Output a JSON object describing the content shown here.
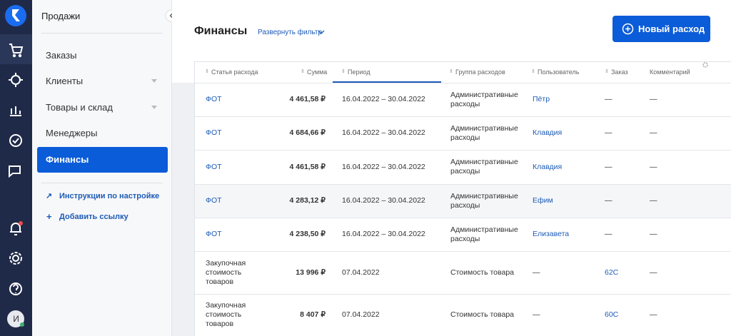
{
  "sidebar": {
    "section_title": "Продажи",
    "menu": [
      "Заказы",
      "Клиенты",
      "Товары и склад",
      "Менеджеры",
      "Финансы"
    ],
    "links": [
      "Инструкции по настройке",
      "Добавить ссылку"
    ],
    "avatar": "И"
  },
  "header": {
    "title": "Финансы",
    "filter_toggle": "Развернуть фильтр",
    "button": "Новый расход"
  },
  "table": {
    "columns": [
      "Статья расхода",
      "Сумма",
      "Период",
      "Группа расходов",
      "Пользователь",
      "Заказ",
      "Комментарий"
    ],
    "rows": [
      [
        "ФОТ",
        "4 461,58 ₽",
        "16.04.2022 – 30.04.2022",
        "Административные расходы",
        "Пётр",
        "—",
        "—"
      ],
      [
        "ФОТ",
        "4 684,66 ₽",
        "16.04.2022 – 30.04.2022",
        "Административные расходы",
        "Клавдия",
        "—",
        "—"
      ],
      [
        "ФОТ",
        "4 461,58 ₽",
        "16.04.2022 – 30.04.2022",
        "Административные расходы",
        "Клавдия",
        "—",
        "—"
      ],
      [
        "ФОТ",
        "4 283,12 ₽",
        "16.04.2022 – 30.04.2022",
        "Административные расходы",
        "Ефим",
        "—",
        "—"
      ],
      [
        "ФОТ",
        "4 238,50 ₽",
        "16.04.2022 – 30.04.2022",
        "Административные расходы",
        "Елизавета",
        "—",
        "—"
      ],
      [
        "Закупочная стоимость товаров",
        "13 996 ₽",
        "07.04.2022",
        "Стоимость товара",
        "—",
        "62С",
        "—"
      ],
      [
        "Закупочная стоимость товаров",
        "8 407 ₽",
        "07.04.2022",
        "Стоимость товара",
        "—",
        "60С",
        "—"
      ]
    ]
  }
}
